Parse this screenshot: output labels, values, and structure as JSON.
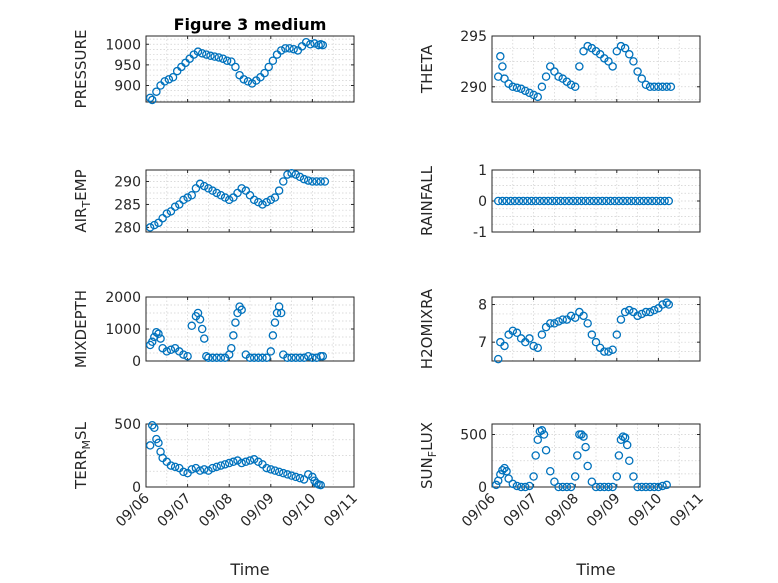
{
  "marker_color": "#0072BD",
  "xlabel": "Time",
  "x_ticks": [
    "09/06",
    "09/07",
    "09/08",
    "09/09",
    "09/10",
    "09/11"
  ],
  "chart_data": [
    {
      "type": "scatter",
      "title": "Figure 3 medium",
      "ylabel": "PRESSURE",
      "xlim": [
        0,
        5
      ],
      "ylim": [
        860,
        1020
      ],
      "yticks": [
        900,
        950,
        1000
      ],
      "x": [
        0.1,
        0.15,
        0.25,
        0.35,
        0.45,
        0.55,
        0.65,
        0.75,
        0.85,
        0.95,
        1.05,
        1.15,
        1.25,
        1.35,
        1.45,
        1.55,
        1.65,
        1.75,
        1.85,
        1.95,
        2.05,
        2.15,
        2.25,
        2.35,
        2.45,
        2.55,
        2.65,
        2.75,
        2.85,
        2.95,
        3.05,
        3.15,
        3.25,
        3.35,
        3.45,
        3.55,
        3.65,
        3.75,
        3.85,
        3.95,
        4.05,
        4.15,
        4.2,
        4.25
      ],
      "y": [
        870,
        865,
        885,
        900,
        910,
        915,
        920,
        935,
        945,
        955,
        965,
        975,
        982,
        978,
        975,
        972,
        970,
        968,
        965,
        960,
        958,
        945,
        925,
        915,
        910,
        905,
        912,
        920,
        930,
        945,
        960,
        975,
        985,
        990,
        990,
        988,
        985,
        995,
        1005,
        1000,
        1002,
        998,
        1000,
        998
      ]
    },
    {
      "type": "scatter",
      "title": "",
      "ylabel": "THETA",
      "xlim": [
        0,
        5
      ],
      "ylim": [
        288.5,
        295
      ],
      "yticks": [
        290,
        295
      ],
      "x": [
        0.15,
        0.2,
        0.25,
        0.3,
        0.4,
        0.5,
        0.6,
        0.7,
        0.8,
        0.9,
        1.0,
        1.1,
        1.2,
        1.3,
        1.4,
        1.5,
        1.6,
        1.7,
        1.8,
        1.9,
        2.0,
        2.1,
        2.2,
        2.3,
        2.4,
        2.5,
        2.6,
        2.7,
        2.8,
        2.9,
        3.0,
        3.1,
        3.2,
        3.3,
        3.4,
        3.5,
        3.6,
        3.7,
        3.8,
        3.9,
        4.0,
        4.1,
        4.2,
        4.3
      ],
      "y": [
        291,
        293,
        292,
        290.8,
        290.3,
        290,
        289.9,
        289.8,
        289.6,
        289.4,
        289.2,
        289,
        290,
        291,
        292,
        291.5,
        291,
        290.8,
        290.5,
        290.2,
        290,
        292,
        293.5,
        294,
        293.8,
        293.5,
        293.2,
        292.8,
        292.5,
        292,
        293.5,
        294,
        293.8,
        293.2,
        292.5,
        291.5,
        290.8,
        290.2,
        290,
        290,
        290,
        290,
        290,
        290
      ]
    },
    {
      "type": "scatter",
      "title": "",
      "ylabel": "AIR_TEMP",
      "xlim": [
        0,
        5
      ],
      "ylim": [
        279,
        292.5
      ],
      "yticks": [
        280,
        285,
        290
      ],
      "x": [
        0.1,
        0.2,
        0.3,
        0.4,
        0.5,
        0.6,
        0.7,
        0.8,
        0.9,
        1.0,
        1.1,
        1.2,
        1.3,
        1.4,
        1.5,
        1.6,
        1.7,
        1.8,
        1.9,
        2.0,
        2.1,
        2.2,
        2.3,
        2.4,
        2.5,
        2.6,
        2.7,
        2.8,
        2.9,
        3.0,
        3.1,
        3.2,
        3.3,
        3.4,
        3.5,
        3.6,
        3.7,
        3.8,
        3.9,
        4.0,
        4.1,
        4.2,
        4.3
      ],
      "y": [
        280,
        280.5,
        281,
        282,
        283,
        283.5,
        284.5,
        285,
        286,
        286.5,
        287,
        288.5,
        289.5,
        289,
        288.5,
        288,
        287.5,
        287,
        286.5,
        286,
        286.5,
        287.5,
        288.5,
        288,
        287,
        286,
        285.5,
        285,
        285.5,
        286,
        286.5,
        288,
        290,
        291.5,
        291.8,
        291.5,
        291,
        290.5,
        290.2,
        290,
        290,
        290,
        290
      ]
    },
    {
      "type": "scatter",
      "title": "",
      "ylabel": "RAINFALL",
      "xlim": [
        0,
        5
      ],
      "ylim": [
        -1,
        1
      ],
      "yticks": [
        -1,
        0,
        1
      ],
      "x": [
        0.15,
        0.25,
        0.35,
        0.45,
        0.55,
        0.65,
        0.75,
        0.85,
        0.95,
        1.05,
        1.15,
        1.25,
        1.35,
        1.45,
        1.55,
        1.65,
        1.75,
        1.85,
        1.95,
        2.05,
        2.15,
        2.25,
        2.35,
        2.45,
        2.55,
        2.65,
        2.75,
        2.85,
        2.95,
        3.05,
        3.15,
        3.25,
        3.35,
        3.45,
        3.55,
        3.65,
        3.75,
        3.85,
        3.95,
        4.05,
        4.15,
        4.25
      ],
      "y": [
        0,
        0,
        0,
        0,
        0,
        0,
        0,
        0,
        0,
        0,
        0,
        0,
        0,
        0,
        0,
        0,
        0,
        0,
        0,
        0,
        0,
        0,
        0,
        0,
        0,
        0,
        0,
        0,
        0,
        0,
        0,
        0,
        0,
        0,
        0,
        0,
        0,
        0,
        0,
        0,
        0,
        0
      ]
    },
    {
      "type": "scatter",
      "title": "",
      "ylabel": "MIXDEPTH",
      "xlim": [
        0,
        5
      ],
      "ylim": [
        0,
        2000
      ],
      "yticks": [
        0,
        1000,
        2000
      ],
      "x": [
        0.1,
        0.15,
        0.2,
        0.25,
        0.3,
        0.35,
        0.4,
        0.5,
        0.6,
        0.7,
        0.8,
        0.9,
        1.0,
        1.1,
        1.2,
        1.25,
        1.3,
        1.35,
        1.4,
        1.45,
        1.5,
        1.6,
        1.7,
        1.8,
        1.9,
        2.0,
        2.05,
        2.1,
        2.15,
        2.2,
        2.25,
        2.3,
        2.4,
        2.5,
        2.6,
        2.7,
        2.8,
        2.9,
        3.0,
        3.05,
        3.1,
        3.15,
        3.2,
        3.25,
        3.3,
        3.4,
        3.5,
        3.6,
        3.7,
        3.8,
        3.9,
        4.0,
        4.1,
        4.2,
        4.25
      ],
      "y": [
        500,
        600,
        750,
        900,
        850,
        700,
        400,
        300,
        350,
        400,
        300,
        200,
        150,
        1100,
        1400,
        1500,
        1300,
        1000,
        700,
        150,
        100,
        100,
        100,
        100,
        100,
        200,
        400,
        800,
        1200,
        1500,
        1700,
        1600,
        200,
        100,
        100,
        100,
        100,
        100,
        300,
        800,
        1200,
        1500,
        1700,
        1500,
        200,
        100,
        100,
        100,
        100,
        100,
        150,
        100,
        100,
        150,
        150
      ]
    },
    {
      "type": "scatter",
      "title": "",
      "ylabel": "H2OMIXRA",
      "xlim": [
        0,
        5
      ],
      "ylim": [
        6.5,
        8.2
      ],
      "yticks": [
        7,
        8
      ],
      "x": [
        0.15,
        0.2,
        0.3,
        0.4,
        0.5,
        0.6,
        0.7,
        0.8,
        0.9,
        1.0,
        1.1,
        1.2,
        1.3,
        1.4,
        1.5,
        1.6,
        1.7,
        1.8,
        1.9,
        2.0,
        2.1,
        2.2,
        2.3,
        2.4,
        2.5,
        2.6,
        2.7,
        2.8,
        2.9,
        3.0,
        3.1,
        3.2,
        3.3,
        3.4,
        3.5,
        3.6,
        3.7,
        3.8,
        3.9,
        4.0,
        4.1,
        4.2,
        4.25
      ],
      "y": [
        6.55,
        7.0,
        6.9,
        7.2,
        7.3,
        7.25,
        7.1,
        7.0,
        7.1,
        6.9,
        6.85,
        7.2,
        7.4,
        7.5,
        7.5,
        7.55,
        7.6,
        7.6,
        7.7,
        7.65,
        7.8,
        7.7,
        7.5,
        7.2,
        7.0,
        6.85,
        6.75,
        6.75,
        6.8,
        7.2,
        7.6,
        7.8,
        7.85,
        7.8,
        7.7,
        7.75,
        7.8,
        7.8,
        7.85,
        7.9,
        8.0,
        8.05,
        8.0
      ]
    },
    {
      "type": "scatter",
      "title": "",
      "ylabel": "TERR_MSL",
      "xlim": [
        0,
        5
      ],
      "ylim": [
        0,
        500
      ],
      "yticks": [
        0,
        500
      ],
      "x": [
        0.1,
        0.15,
        0.2,
        0.25,
        0.3,
        0.35,
        0.4,
        0.5,
        0.6,
        0.7,
        0.8,
        0.9,
        1.0,
        1.1,
        1.2,
        1.3,
        1.4,
        1.5,
        1.6,
        1.7,
        1.8,
        1.9,
        2.0,
        2.1,
        2.2,
        2.3,
        2.4,
        2.5,
        2.6,
        2.7,
        2.8,
        2.9,
        3.0,
        3.1,
        3.2,
        3.3,
        3.4,
        3.5,
        3.6,
        3.7,
        3.8,
        3.9,
        4.0,
        4.05,
        4.1,
        4.15,
        4.2
      ],
      "y": [
        330,
        490,
        470,
        380,
        350,
        280,
        230,
        200,
        170,
        160,
        150,
        120,
        110,
        140,
        150,
        130,
        140,
        130,
        150,
        160,
        170,
        180,
        190,
        200,
        210,
        190,
        200,
        210,
        220,
        200,
        180,
        150,
        140,
        130,
        120,
        110,
        100,
        90,
        80,
        70,
        60,
        100,
        80,
        50,
        30,
        20,
        15
      ]
    },
    {
      "type": "scatter",
      "title": "",
      "ylabel": "SUN_FLUX",
      "xlim": [
        0,
        5
      ],
      "ylim": [
        0,
        600
      ],
      "yticks": [
        0,
        500
      ],
      "x": [
        0.1,
        0.15,
        0.2,
        0.25,
        0.3,
        0.35,
        0.4,
        0.5,
        0.6,
        0.7,
        0.8,
        0.9,
        1.0,
        1.05,
        1.1,
        1.15,
        1.2,
        1.25,
        1.3,
        1.4,
        1.5,
        1.6,
        1.7,
        1.8,
        1.9,
        2.0,
        2.05,
        2.1,
        2.15,
        2.2,
        2.25,
        2.3,
        2.4,
        2.5,
        2.6,
        2.7,
        2.8,
        2.9,
        3.0,
        3.05,
        3.1,
        3.15,
        3.2,
        3.25,
        3.3,
        3.4,
        3.5,
        3.6,
        3.7,
        3.8,
        3.9,
        4.0,
        4.1,
        4.2
      ],
      "y": [
        20,
        60,
        120,
        160,
        180,
        150,
        80,
        30,
        10,
        0,
        0,
        10,
        100,
        300,
        450,
        530,
        540,
        500,
        350,
        150,
        50,
        0,
        0,
        0,
        0,
        100,
        300,
        500,
        500,
        480,
        380,
        200,
        50,
        0,
        0,
        0,
        0,
        0,
        100,
        300,
        450,
        480,
        470,
        400,
        250,
        100,
        0,
        0,
        0,
        0,
        0,
        0,
        10,
        20
      ]
    }
  ]
}
